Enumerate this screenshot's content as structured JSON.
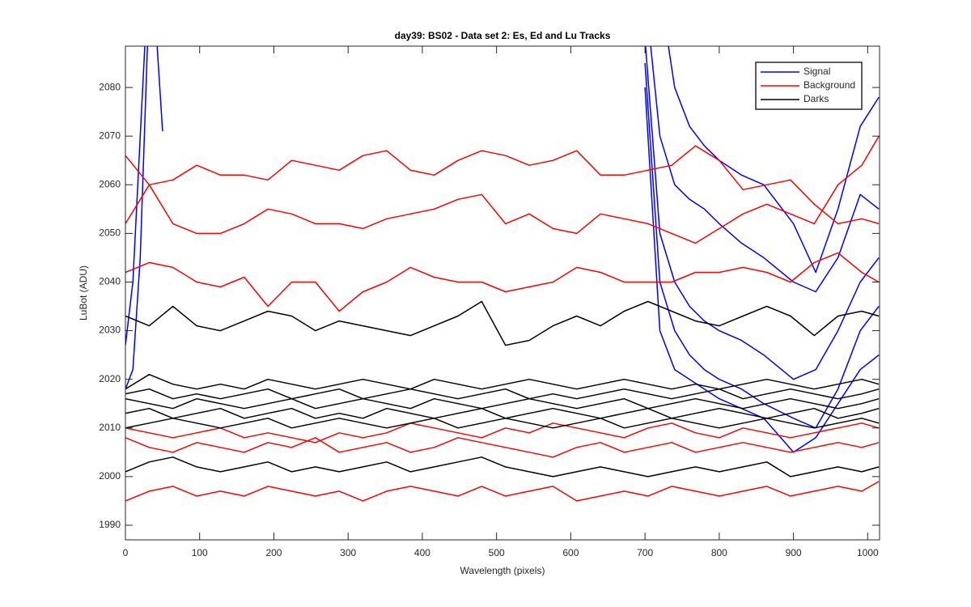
{
  "chart_data": {
    "type": "line",
    "title": "day39: BS02 - Data set 2: Es, Ed and Lu Tracks",
    "x_label": "Wavelength (pixels)",
    "y_label": "LuBot (ADU)",
    "xlim": [
      0,
      1016
    ],
    "ylim": [
      1987,
      2088.5
    ],
    "xticks": [
      0,
      100,
      200,
      300,
      400,
      500,
      600,
      700,
      800,
      900,
      1000
    ],
    "yticks": [
      1990,
      2000,
      2010,
      2020,
      2030,
      2040,
      2050,
      2060,
      2070,
      2080
    ],
    "legend": "upper right",
    "x": [
      0,
      32,
      64,
      96,
      128,
      160,
      192,
      224,
      256,
      288,
      320,
      352,
      384,
      416,
      448,
      480,
      512,
      544,
      576,
      608,
      640,
      672,
      704,
      736,
      768,
      800,
      832,
      864,
      896,
      928,
      960,
      992,
      1015
    ],
    "series": [
      {
        "name": "Signal",
        "color": "#0000ff",
        "x": [
          0,
          10,
          20,
          30,
          40,
          50,
          60,
          700,
          720,
          740,
          760,
          780,
          800,
          830,
          860,
          900,
          930,
          960,
          990,
          1015
        ],
        "lines": [
          [
            2027,
            2040,
            2070,
            2100,
            2095,
            2071,
            null,
            null,
            2100,
            2080,
            2072,
            2068,
            2065,
            2062,
            2060,
            2052,
            2042,
            2055,
            2072,
            2078
          ],
          [
            2018,
            2022,
            2045,
            2090,
            2100,
            null,
            null,
            2100,
            2070,
            2060,
            2057,
            2055,
            2052,
            2048,
            2045,
            2040,
            2038,
            2045,
            2058,
            2055
          ],
          [
            null,
            null,
            null,
            null,
            null,
            null,
            null,
            2090,
            2050,
            2040,
            2035,
            2032,
            2030,
            2028,
            2025,
            2020,
            2022,
            2030,
            2040,
            2045
          ],
          [
            null,
            null,
            null,
            null,
            null,
            null,
            null,
            2085,
            2040,
            2030,
            2025,
            2022,
            2020,
            2018,
            2015,
            2012,
            2010,
            2018,
            2030,
            2035
          ],
          [
            null,
            null,
            null,
            null,
            null,
            null,
            null,
            2080,
            2030,
            2022,
            2020,
            2018,
            2016,
            2014,
            2012,
            2005,
            2008,
            2015,
            2022,
            2025
          ]
        ]
      },
      {
        "name": "Background",
        "color": "#ff0000",
        "lines": [
          [
            2066,
            2060,
            2061,
            2064,
            2062,
            2062,
            2061,
            2065,
            2064,
            2063,
            2066,
            2067,
            2063,
            2062,
            2065,
            2067,
            2066,
            2064,
            2065,
            2067,
            2062,
            2062,
            2063,
            2064,
            2068,
            2065,
            2059,
            2060,
            2061,
            2056,
            2052,
            2053,
            2052
          ],
          [
            2052,
            2060,
            2052,
            2050,
            2050,
            2052,
            2055,
            2054,
            2052,
            2052,
            2051,
            2053,
            2054,
            2055,
            2057,
            2058,
            2052,
            2054,
            2051,
            2050,
            2054,
            2053,
            2052,
            2050,
            2048,
            2051,
            2054,
            2056,
            2054,
            2052,
            2060,
            2064,
            2070
          ],
          [
            2042,
            2044,
            2043,
            2040,
            2039,
            2041,
            2035,
            2040,
            2040,
            2034,
            2038,
            2040,
            2043,
            2041,
            2040,
            2040,
            2038,
            2039,
            2040,
            2043,
            2042,
            2040,
            2040,
            2040,
            2042,
            2042,
            2043,
            2042,
            2040,
            2044,
            2046,
            2042,
            2040
          ],
          [
            2010,
            2009,
            2008,
            2009,
            2010,
            2008,
            2009,
            2008,
            2007,
            2009,
            2008,
            2009,
            2011,
            2010,
            2009,
            2008,
            2010,
            2009,
            2011,
            2010,
            2009,
            2008,
            2010,
            2011,
            2009,
            2008,
            2010,
            2009,
            2008,
            2009,
            2010,
            2011,
            2010
          ],
          [
            2008,
            2006,
            2005,
            2007,
            2006,
            2005,
            2007,
            2006,
            2008,
            2005,
            2006,
            2007,
            2005,
            2006,
            2008,
            2007,
            2006,
            2005,
            2004,
            2006,
            2007,
            2005,
            2006,
            2007,
            2005,
            2006,
            2007,
            2006,
            2005,
            2006,
            2007,
            2006,
            2007
          ],
          [
            1995,
            1997,
            1998,
            1996,
            1997,
            1996,
            1998,
            1997,
            1996,
            1997,
            1995,
            1997,
            1998,
            1997,
            1996,
            1998,
            1996,
            1997,
            1998,
            1995,
            1996,
            1997,
            1996,
            1998,
            1997,
            1996,
            1997,
            1998,
            1996,
            1997,
            1998,
            1997,
            1999
          ]
        ]
      },
      {
        "name": "Darks",
        "color": "#000000",
        "lines": [
          [
            2033,
            2031,
            2035,
            2031,
            2030,
            2032,
            2034,
            2033,
            2030,
            2032,
            2031,
            2030,
            2029,
            2031,
            2033,
            2036,
            2027,
            2028,
            2031,
            2033,
            2031,
            2034,
            2036,
            2034,
            2032,
            2031,
            2033,
            2035,
            2033,
            2029,
            2033,
            2034,
            2033
          ],
          [
            2018,
            2021,
            2019,
            2018,
            2019,
            2018,
            2020,
            2019,
            2018,
            2019,
            2020,
            2019,
            2018,
            2020,
            2019,
            2018,
            2019,
            2020,
            2019,
            2018,
            2019,
            2020,
            2019,
            2018,
            2019,
            2018,
            2019,
            2020,
            2019,
            2018,
            2019,
            2020,
            2019
          ],
          [
            2017,
            2018,
            2016,
            2017,
            2016,
            2017,
            2018,
            2016,
            2017,
            2018,
            2016,
            2017,
            2018,
            2017,
            2016,
            2017,
            2018,
            2016,
            2017,
            2016,
            2017,
            2018,
            2017,
            2016,
            2017,
            2018,
            2016,
            2017,
            2018,
            2017,
            2016,
            2017,
            2018
          ],
          [
            2016,
            2015,
            2014,
            2016,
            2015,
            2014,
            2015,
            2016,
            2014,
            2015,
            2016,
            2015,
            2014,
            2016,
            2015,
            2014,
            2015,
            2016,
            2015,
            2014,
            2015,
            2016,
            2014,
            2015,
            2016,
            2015,
            2014,
            2015,
            2016,
            2015,
            2014,
            2015,
            2016
          ],
          [
            2013,
            2014,
            2012,
            2013,
            2014,
            2012,
            2013,
            2014,
            2012,
            2013,
            2012,
            2014,
            2013,
            2012,
            2013,
            2014,
            2012,
            2013,
            2014,
            2013,
            2012,
            2013,
            2014,
            2012,
            2013,
            2014,
            2013,
            2012,
            2013,
            2014,
            2012,
            2013,
            2014
          ],
          [
            2010,
            2011,
            2012,
            2011,
            2010,
            2011,
            2012,
            2010,
            2011,
            2012,
            2011,
            2010,
            2011,
            2012,
            2010,
            2011,
            2012,
            2011,
            2010,
            2011,
            2012,
            2010,
            2011,
            2012,
            2011,
            2010,
            2011,
            2012,
            2011,
            2010,
            2011,
            2012,
            2011
          ],
          [
            2001,
            2003,
            2004,
            2002,
            2001,
            2002,
            2003,
            2001,
            2002,
            2001,
            2002,
            2003,
            2001,
            2002,
            2003,
            2004,
            2002,
            2001,
            2000,
            2001,
            2002,
            2001,
            2000,
            2001,
            2002,
            2001,
            2002,
            2003,
            2000,
            2001,
            2002,
            2001,
            2002
          ]
        ]
      }
    ]
  }
}
